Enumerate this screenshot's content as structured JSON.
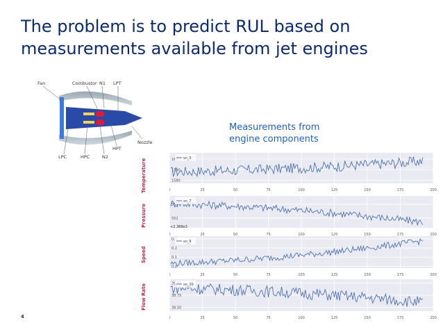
{
  "slide": {
    "title_lines": [
      "The problem is to predict RUL based on",
      "measurements available from jet engines"
    ],
    "measurements_lines": [
      "Measurements from",
      "engine components"
    ],
    "page_number": "4"
  },
  "engine_diagram": {
    "labels": {
      "fan": "Fan",
      "combustor": "Combustor",
      "n1": "N1",
      "lpt": "LPT",
      "nozzle": "Nozzle",
      "hpt": "HPT",
      "lpc": "LPC",
      "hpc": "HPC",
      "n2": "N2"
    }
  },
  "colors": {
    "title": "#0b2a6f",
    "accent": "#1f5fbf",
    "sensor_label": "#c0264f",
    "line": "#4c72b0",
    "plot_bg": "#eaeaf2"
  },
  "chart_data": [
    {
      "type": "line",
      "ylabel": "Temperature",
      "legend": "sn_3",
      "legend_position": "top-left",
      "x_ticks": [
        "0",
        "25",
        "50",
        "75",
        "100",
        "125",
        "150",
        "175",
        "200"
      ],
      "xlim": [
        0,
        200
      ],
      "y_ticks": [
        "1580",
        "1590",
        "1600"
      ],
      "ylim": [
        1577,
        1606
      ],
      "grid": true,
      "n_points": 192,
      "y_start": 1588,
      "y_end": 1598,
      "noise": 5,
      "offset_label": ""
    },
    {
      "type": "line",
      "ylabel": "Pressure",
      "legend": "sn_7",
      "legend_position": "top-left",
      "x_ticks": [
        "0",
        "25",
        "50",
        "75",
        "100",
        "125",
        "150",
        "175",
        "200"
      ],
      "xlim": [
        0,
        200
      ],
      "y_ticks": [
        "552",
        "554"
      ],
      "ylim": [
        550.6,
        555.2
      ],
      "grid": true,
      "n_points": 192,
      "y_start": 554.1,
      "y_end": 551.4,
      "noise": 0.55,
      "offset_label": "+2.388e3"
    },
    {
      "type": "line",
      "ylabel": "Speed",
      "legend": "sn_9",
      "legend_position": "top-left",
      "x_ticks": [
        "0",
        "25",
        "50",
        "75",
        "100",
        "125",
        "150",
        "175",
        "200"
      ],
      "xlim": [
        0,
        200
      ],
      "y_ticks": [
        "0.0",
        "0.1",
        "0.2",
        "0.3"
      ],
      "ylim": [
        -0.02,
        0.33
      ],
      "grid": true,
      "n_points": 192,
      "y_start": 0.03,
      "y_end": 0.28,
      "noise": 0.035,
      "offset_label": ""
    },
    {
      "type": "line",
      "ylabel": "Flow Rate",
      "legend": "sn_20",
      "legend_position": "top-left",
      "x_ticks": [
        "0",
        "25",
        "50",
        "75",
        "100",
        "125",
        "150",
        "175",
        "200"
      ],
      "xlim": [
        0,
        200
      ],
      "y_ticks": [
        "38.50",
        "38.75",
        "39.00"
      ],
      "ylim": [
        38.42,
        39.08
      ],
      "grid": true,
      "n_points": 192,
      "y_start": 38.9,
      "y_end": 38.6,
      "noise": 0.12,
      "offset_label": ""
    }
  ]
}
